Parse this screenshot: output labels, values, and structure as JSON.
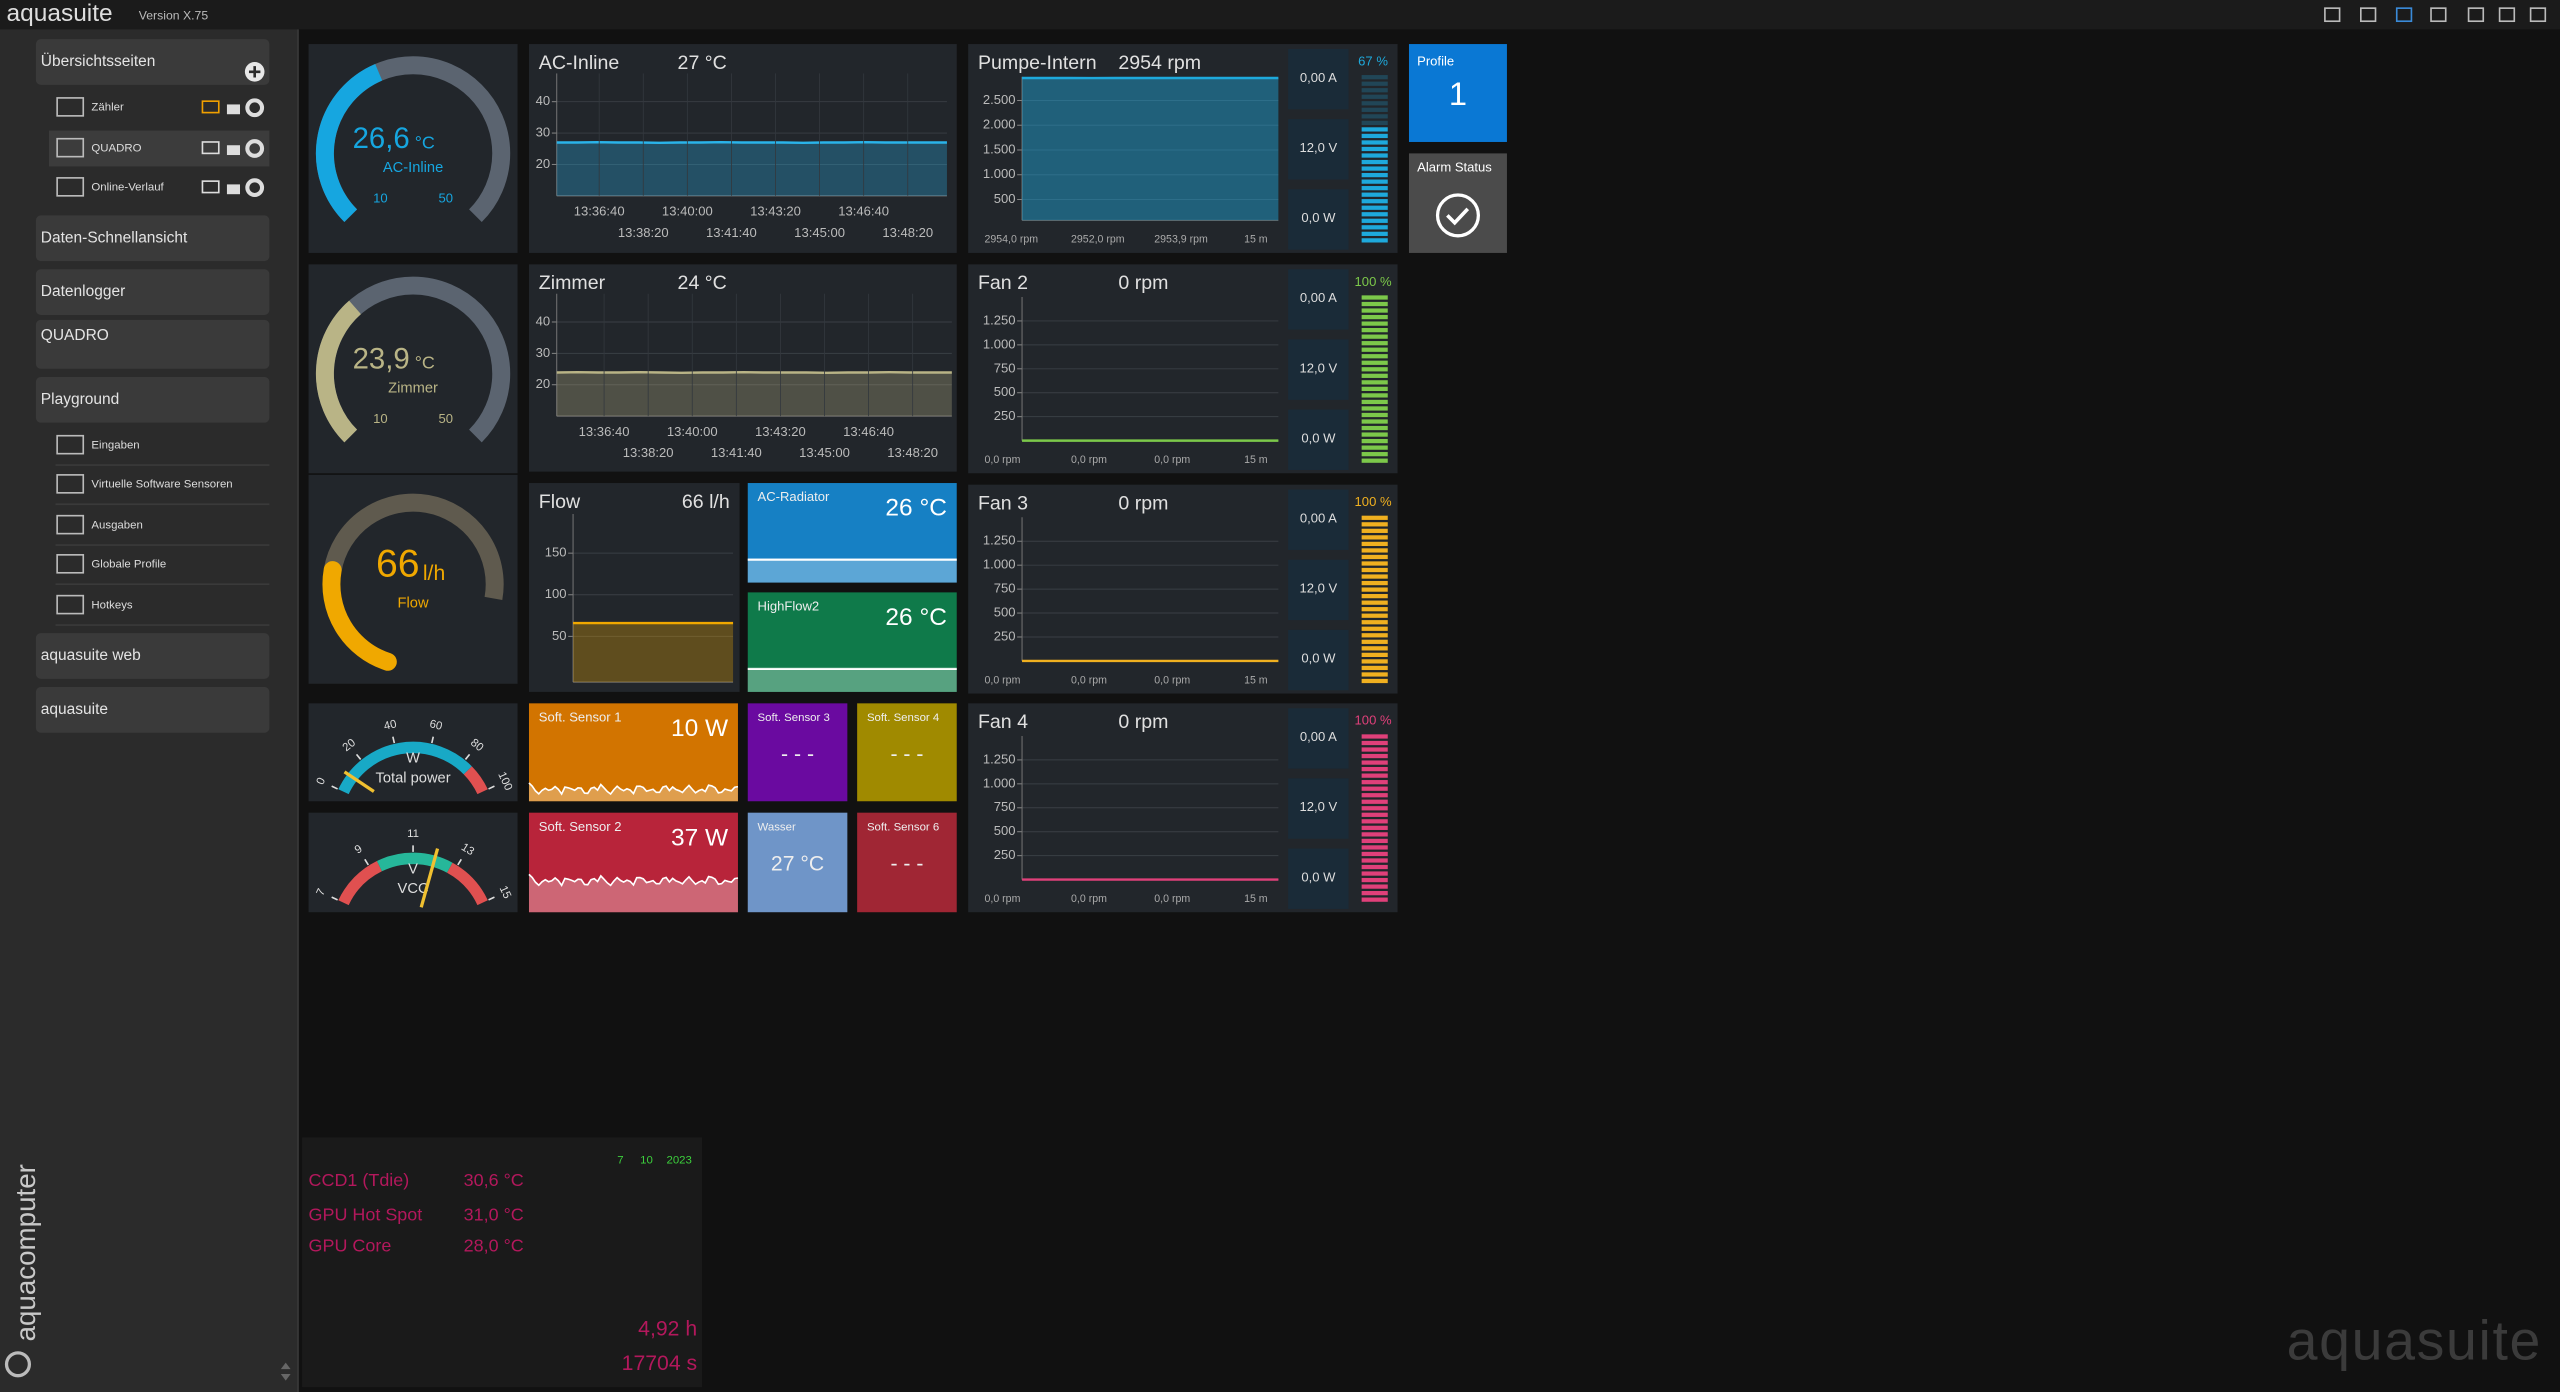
{
  "titlebar": {
    "app": "aquasuite",
    "version": "Version X.75"
  },
  "sidebar": {
    "items": [
      {
        "label": "Übersichtsseiten",
        "children": [
          "Zähler",
          "QUADRO",
          "Online-Verlauf"
        ]
      },
      {
        "label": "Daten-Schnellansicht"
      },
      {
        "label": "Datenlogger"
      },
      {
        "label": "QUADRO"
      },
      {
        "label": "Playground",
        "children": [
          "Eingaben",
          "Virtuelle Software Sensoren",
          "Ausgaben",
          "Globale Profile",
          "Hotkeys"
        ]
      },
      {
        "label": "aquasuite web"
      },
      {
        "label": "aquasuite"
      }
    ],
    "brand": "aquacomputer"
  },
  "gauges": [
    {
      "value": 26.6,
      "value_label": "26,6",
      "unit": "°C",
      "label": "AC-Inline",
      "min": 10,
      "max": 50,
      "color": "#16a6e0"
    },
    {
      "value": 23.9,
      "value_label": "23,9",
      "unit": "°C",
      "label": "Zimmer",
      "min": 10,
      "max": 50,
      "color": "#b9b486"
    },
    {
      "value": 66,
      "unit": "l/h",
      "label": "Flow",
      "color": "#f0a800"
    }
  ],
  "dials": [
    {
      "unit": "W",
      "label": "Total power",
      "ticks": [
        0,
        20,
        40,
        60,
        80,
        100
      ]
    },
    {
      "unit": "V",
      "label": "VCC",
      "ticks": [
        7,
        9,
        11,
        13,
        15
      ]
    }
  ],
  "charts": [
    {
      "title": "AC-Inline",
      "reading": "27 °C",
      "color": "#2ab4ea",
      "ylim": [
        10,
        49
      ],
      "yticks": [
        20,
        30,
        40
      ],
      "xticks": [
        "13:36:40",
        "13:38:20",
        "13:40:00",
        "13:41:40",
        "13:43:20",
        "13:45:00",
        "13:46:40",
        "13:48:20"
      ],
      "values": [
        27,
        27,
        27.1,
        27,
        27,
        26.9,
        27,
        27,
        27.1,
        27,
        27,
        27,
        26.9,
        27,
        27,
        27.1,
        27,
        27,
        27,
        27
      ]
    },
    {
      "title": "Zimmer",
      "reading": "24 °C",
      "color": "#b9b486",
      "ylim": [
        10,
        49
      ],
      "yticks": [
        20,
        30,
        40
      ],
      "xticks": [
        "13:36:40",
        "13:38:20",
        "13:40:00",
        "13:41:40",
        "13:43:20",
        "13:45:00",
        "13:46:40",
        "13:48:20"
      ],
      "values": [
        23.9,
        24,
        23.9,
        23.9,
        24,
        23.9,
        23.8,
        23.9,
        23.9,
        24,
        23.9,
        23.9,
        23.9,
        23.8,
        23.9,
        23.9,
        24,
        23.9,
        23.9,
        23.9
      ]
    },
    {
      "title": "Flow",
      "reading": "66 l/h",
      "color": "#f0a800",
      "ylim": [
        -5,
        197
      ],
      "yticks": [
        50,
        100,
        150
      ],
      "values": [
        66,
        66,
        66,
        66,
        66,
        66,
        66,
        66,
        66,
        66,
        66,
        66
      ]
    }
  ],
  "fans": [
    {
      "title": "Pumpe-Intern",
      "reading": "2954 rpm",
      "color": "#1ea9dc",
      "ylim": [
        80,
        2980
      ],
      "yticks": [
        500,
        {
          "value": 1000,
          "label": "1.000"
        },
        {
          "value": 1500,
          "label": "1.500"
        },
        {
          "value": 2000,
          "label": "2.000"
        },
        {
          "value": 2500,
          "label": "2.500"
        }
      ],
      "values": [
        2954,
        2953,
        2954,
        2952,
        2954,
        2954,
        2953,
        2954,
        2954,
        2953,
        2954,
        2954
      ],
      "footer": [
        "2954,0 rpm",
        "2952,0 rpm",
        "2953,9 rpm",
        "15 m"
      ],
      "current": "0,00 A",
      "voltage": "12,0 V",
      "power": "0,0 W",
      "level": 67,
      "level_label": "67 %"
    },
    {
      "title": "Fan 2",
      "reading": "0 rpm",
      "color": "#7cc84a",
      "ylim": [
        0,
        1500
      ],
      "yticks": [
        250,
        500,
        750,
        {
          "value": 1000,
          "label": "1.000"
        },
        {
          "value": 1250,
          "label": "1.250"
        }
      ],
      "values": [
        0,
        0,
        0,
        0,
        0,
        0,
        0,
        0,
        0,
        0,
        0,
        0
      ],
      "footer": [
        "0,0 rpm",
        "0,0 rpm",
        "0,0 rpm",
        "15 m"
      ],
      "current": "0,00 A",
      "voltage": "12,0 V",
      "power": "0,0 W",
      "level": 100,
      "level_label": "100 %"
    },
    {
      "title": "Fan 3",
      "reading": "0 rpm",
      "color": "#f0b020",
      "ylim": [
        0,
        1500
      ],
      "yticks": [
        250,
        500,
        750,
        {
          "value": 1000,
          "label": "1.000"
        },
        {
          "value": 1250,
          "label": "1.250"
        }
      ],
      "values": [
        0,
        0,
        0,
        0,
        0,
        0,
        0,
        0,
        0,
        0,
        0,
        0
      ],
      "footer": [
        "0,0 rpm",
        "0,0 rpm",
        "0,0 rpm",
        "15 m"
      ],
      "current": "0,00 A",
      "voltage": "12,0 V",
      "power": "0,0 W",
      "level": 100,
      "level_label": "100 %"
    },
    {
      "title": "Fan 4",
      "reading": "0 rpm",
      "color": "#e0407a",
      "ylim": [
        0,
        1500
      ],
      "yticks": [
        250,
        500,
        750,
        {
          "value": 1000,
          "label": "1.000"
        },
        {
          "value": 1250,
          "label": "1.250"
        }
      ],
      "values": [
        0,
        0,
        0,
        0,
        0,
        0,
        0,
        0,
        0,
        0,
        0,
        0
      ],
      "footer": [
        "0,0 rpm",
        "0,0 rpm",
        "0,0 rpm",
        "15 m"
      ],
      "current": "0,00 A",
      "voltage": "12,0 V",
      "power": "0,0 W",
      "level": 100,
      "level_label": "100 %"
    }
  ],
  "tiles": [
    {
      "label": "AC-Radiator",
      "value": "26 °C",
      "color": "#1680c4"
    },
    {
      "label": "HighFlow2",
      "value": "26 °C",
      "color": "#0f7a4a"
    },
    {
      "label": "Soft. Sensor 1",
      "value": "10 W",
      "color": "#d27400"
    },
    {
      "label": "Soft. Sensor 3",
      "value": "- - -",
      "color": "#6a0aa0"
    },
    {
      "label": "Soft. Sensor 4",
      "value": "- - -",
      "color": "#a08a00"
    },
    {
      "label": "Soft. Sensor 2",
      "value": "37 W",
      "color": "#b8243a"
    },
    {
      "label": "Wasser",
      "value": "27 °C",
      "color": "#6f95c8"
    },
    {
      "label": "Soft. Sensor 6",
      "value": "- - -",
      "color": "#a02634"
    }
  ],
  "profile": {
    "label": "Profile",
    "value": "1"
  },
  "alarm": {
    "label": "Alarm Status"
  },
  "sensors": {
    "date": [
      "7",
      "10",
      "2023"
    ],
    "rows": [
      [
        "CCD1 (Tdie)",
        "30,6 °C"
      ],
      [
        "GPU Hot Spot",
        "31,0 °C"
      ],
      [
        "GPU Core",
        "28,0 °C"
      ]
    ],
    "hours": "4,92 h",
    "seconds": "17704 s"
  },
  "watermark": "aquasuite"
}
